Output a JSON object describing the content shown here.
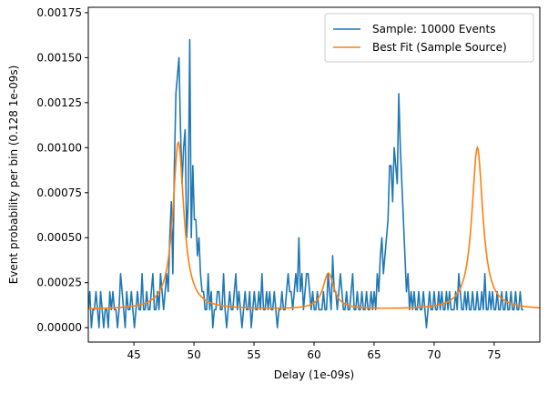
{
  "chart_data": {
    "type": "line",
    "xlabel": "Delay (1e-09s)",
    "ylabel": "Event probability per bin (0.128 1e-09s)",
    "xlim": [
      41.2,
      78.8
    ],
    "ylim": [
      -8e-05,
      0.00178
    ],
    "x_ticks": [
      45,
      50,
      55,
      60,
      65,
      70,
      75
    ],
    "x_tick_labels": [
      "45",
      "50",
      "55",
      "60",
      "65",
      "70",
      "75"
    ],
    "y_ticks": [
      0,
      0.00025,
      0.0005,
      0.00075,
      0.001,
      0.00125,
      0.0015,
      0.00175
    ],
    "y_tick_labels": [
      "0.00000",
      "0.00025",
      "0.00050",
      "0.00075",
      "0.00100",
      "0.00125",
      "0.00150",
      "0.00175"
    ],
    "grid": false,
    "legend_position": "top-right",
    "series": [
      {
        "name": "Sample: 10000 Events",
        "color": "#1f77b4",
        "style": "sample",
        "x_start": 41.2,
        "x_step": 0.128,
        "values": [
          0.0001,
          0.0002,
          0.0,
          0.0001,
          0.0001,
          0.0002,
          0.0001,
          0.0,
          0.0002,
          0.0001,
          0.0,
          0.0001,
          0.0001,
          0.0,
          0.0002,
          0.0001,
          0.0002,
          0.0001,
          0.0001,
          0.0,
          0.0001,
          0.0003,
          0.0002,
          0.0001,
          0.0,
          0.0002,
          0.0001,
          0.0001,
          0.0002,
          0.0001,
          0.0,
          0.0001,
          0.0002,
          0.0001,
          0.0001,
          0.0003,
          0.0001,
          0.0001,
          0.0002,
          0.0001,
          0.0001,
          0.0002,
          0.0003,
          0.0001,
          0.0001,
          0.0002,
          0.0001,
          0.0003,
          0.0002,
          0.0001,
          0.0002,
          0.0003,
          0.0002,
          0.0005,
          0.0007,
          0.0003,
          0.0009,
          0.0013,
          0.0014,
          0.0015,
          0.0011,
          0.0008,
          0.001,
          0.0011,
          0.0005,
          0.0007,
          0.0016,
          0.0005,
          0.0009,
          0.0006,
          0.0006,
          0.0004,
          0.0005,
          0.0003,
          0.0002,
          0.0002,
          0.0001,
          0.0001,
          0.0003,
          0.0001,
          0.0002,
          0.0,
          0.0001,
          0.0001,
          0.0002,
          0.0002,
          0.0001,
          0.0001,
          0.0003,
          0.0001,
          0.0,
          0.0001,
          0.0002,
          0.0001,
          0.0001,
          0.0002,
          0.0003,
          0.0001,
          0.0002,
          0.0001,
          0.0,
          0.0001,
          0.0002,
          0.0001,
          0.0001,
          0.0002,
          0.0,
          0.0001,
          0.0002,
          0.0001,
          0.0001,
          0.0002,
          0.0001,
          0.0003,
          0.0001,
          0.0001,
          0.0002,
          0.0001,
          0.0002,
          0.0001,
          0.0001,
          0.0002,
          0.0001,
          0.0,
          0.0001,
          0.0001,
          0.0002,
          0.0001,
          0.0001,
          0.0002,
          0.0003,
          0.0002,
          0.0002,
          0.0001,
          0.0002,
          0.0003,
          0.0002,
          0.0005,
          0.0002,
          0.0003,
          0.0001,
          0.0002,
          0.0003,
          0.0003,
          0.0002,
          0.0001,
          0.0002,
          0.0001,
          0.0001,
          0.0002,
          0.0001,
          0.0001,
          0.0001,
          0.0002,
          0.0001,
          0.0001,
          0.0003,
          0.0002,
          0.0001,
          0.0004,
          0.0002,
          0.0002,
          0.0001,
          0.0002,
          0.0003,
          0.0002,
          0.0001,
          0.0001,
          0.0002,
          0.0001,
          0.0001,
          0.0002,
          0.0003,
          0.0001,
          0.0001,
          0.0002,
          0.0001,
          0.0001,
          0.0002,
          0.0001,
          0.0001,
          0.0002,
          0.0001,
          0.0001,
          0.0002,
          0.0001,
          0.0002,
          0.0001,
          0.0003,
          0.0002,
          0.0004,
          0.0005,
          0.0003,
          0.0004,
          0.0005,
          0.0006,
          0.0009,
          0.0009,
          0.0007,
          0.001,
          0.0009,
          0.0008,
          0.0013,
          0.001,
          0.0008,
          0.0006,
          0.0004,
          0.0002,
          0.0003,
          0.0001,
          0.0002,
          0.0001,
          0.0002,
          0.0001,
          0.0001,
          0.0002,
          0.0001,
          0.0001,
          0.0002,
          0.0001,
          0.0,
          0.0001,
          0.0002,
          0.0001,
          0.0001,
          0.0002,
          0.0001,
          0.0001,
          0.0002,
          0.0001,
          0.0002,
          0.0001,
          0.0001,
          0.0002,
          0.0001,
          0.0002,
          0.0001,
          0.0001,
          0.0001,
          0.0002,
          0.0001,
          0.0003,
          0.0002,
          0.0001,
          0.0001,
          0.0002,
          0.0001,
          0.0002,
          0.0001,
          0.0001,
          0.0002,
          0.0001,
          0.0001,
          0.0002,
          0.0001,
          0.0001,
          0.0002,
          0.0001,
          0.0003,
          0.0001,
          0.0001,
          0.0002,
          0.0001,
          0.0002,
          0.0001,
          0.0001,
          0.0002,
          0.0001,
          0.0001,
          0.0002,
          0.0001,
          0.0001,
          0.0002,
          0.0001,
          0.0001,
          0.0002,
          0.0001,
          0.0001,
          0.0002,
          0.0001,
          0.0001,
          0.0002,
          0.0001,
          0.0001
        ]
      },
      {
        "name": "Best Fit (Sample Source)",
        "color": "#ff7f0e",
        "style": "fit",
        "baseline": 0.0001,
        "peaks": [
          {
            "center": 48.7,
            "amplitude": 0.00093,
            "width": 0.55
          },
          {
            "center": 61.2,
            "amplitude": 0.0002,
            "width": 0.55
          },
          {
            "center": 73.6,
            "amplitude": 0.0009,
            "width": 0.55
          }
        ]
      }
    ]
  }
}
